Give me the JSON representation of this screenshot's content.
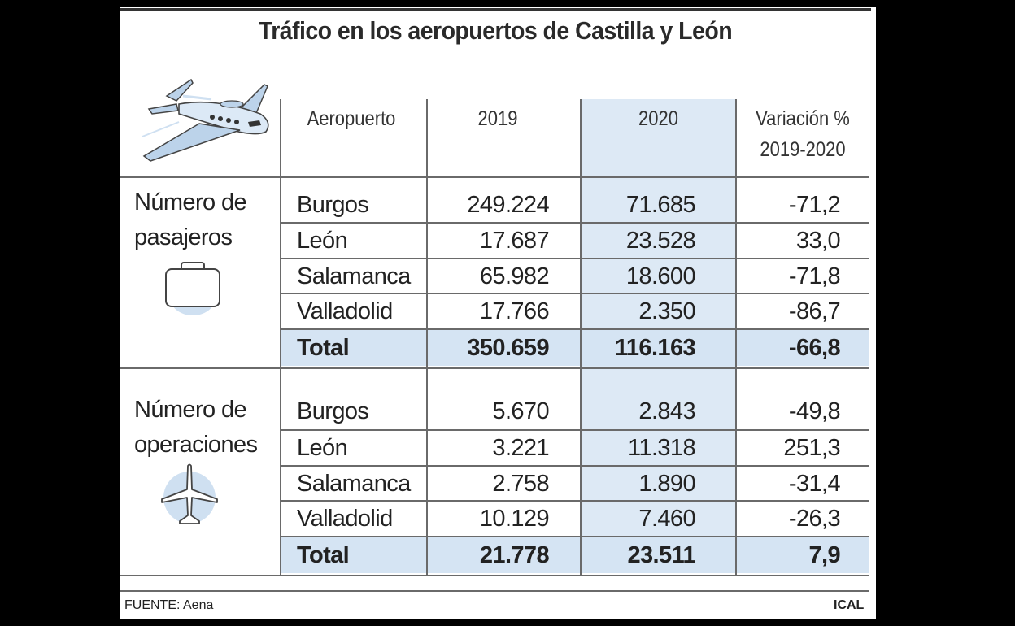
{
  "title": "Tráfico en los aeropuertos de Castilla y León",
  "header": {
    "col_airport": "Aeropuerto",
    "col_2019": "2019",
    "col_2020": "2020",
    "col_var_line1": "Variación %",
    "col_var_line2": "2019-2020"
  },
  "sections": {
    "pasajeros": {
      "line1": "Número de",
      "line2": "pasajeros",
      "icon": "briefcase-icon"
    },
    "operaciones": {
      "line1": "Número de",
      "line2": "operaciones",
      "icon": "airplane-icon"
    }
  },
  "chart_data": {
    "type": "table",
    "title": "Tráfico en los aeropuertos de Castilla y León",
    "columns": [
      "Aeropuerto",
      "2019",
      "2020",
      "Variación % 2019-2020"
    ],
    "pasajeros": {
      "rows": [
        {
          "airport": "Burgos",
          "y2019": "249.224",
          "y2020": "71.685",
          "var": "-71,2"
        },
        {
          "airport": "León",
          "y2019": "17.687",
          "y2020": "23.528",
          "var": "33,0"
        },
        {
          "airport": "Salamanca",
          "y2019": "65.982",
          "y2020": "18.600",
          "var": "-71,8"
        },
        {
          "airport": "Valladolid",
          "y2019": "17.766",
          "y2020": "2.350",
          "var": "-86,7"
        }
      ],
      "total": {
        "airport": "Total",
        "y2019": "350.659",
        "y2020": "116.163",
        "var": "-66,8"
      }
    },
    "operaciones": {
      "rows": [
        {
          "airport": "Burgos",
          "y2019": "5.670",
          "y2020": "2.843",
          "var": "-49,8"
        },
        {
          "airport": "León",
          "y2019": "3.221",
          "y2020": "11.318",
          "var": "251,3"
        },
        {
          "airport": "Salamanca",
          "y2019": "2.758",
          "y2020": "1.890",
          "var": "-31,4"
        },
        {
          "airport": "Valladolid",
          "y2019": "10.129",
          "y2020": "7.460",
          "var": "-26,3"
        }
      ],
      "total": {
        "airport": "Total",
        "y2019": "21.778",
        "y2020": "23.511",
        "var": "7,9"
      }
    }
  },
  "footer": {
    "source": "FUENTE: Aena",
    "agency": "ICAL"
  },
  "colors": {
    "highlight": "#dde9f5",
    "total_row": "#d5e4f3",
    "icon_fill": "#bcd3ea"
  }
}
